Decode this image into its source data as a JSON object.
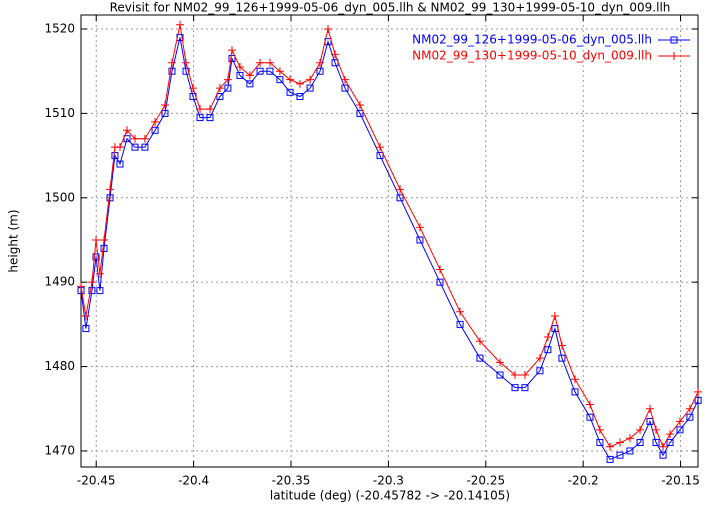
{
  "chart_data": {
    "type": "line",
    "title": "Revisit for NM02_99_126+1999-05-06_dyn_005.llh & NM02_99_130+1999-05-10_dyn_009.llh",
    "x_label": "latitude (deg) (-20.45782 -> -20.14105)",
    "y_label": "height (m)",
    "x": [
      -20.4578,
      -20.4553,
      -20.4522,
      -20.4501,
      -20.4481,
      -20.446,
      -20.4429,
      -20.4404,
      -20.4378,
      -20.4342,
      -20.4301,
      -20.425,
      -20.4198,
      -20.4147,
      -20.4111,
      -20.407,
      -20.4039,
      -20.4003,
      -20.3967,
      -20.3916,
      -20.3865,
      -20.3824,
      -20.3803,
      -20.3762,
      -20.3711,
      -20.3659,
      -20.3608,
      -20.3557,
      -20.3505,
      -20.3454,
      -20.3402,
      -20.3351,
      -20.331,
      -20.3274,
      -20.3223,
      -20.3146,
      -20.3043,
      -20.294,
      -20.2838,
      -20.2735,
      -20.2632,
      -20.253,
      -20.2427,
      -20.235,
      -20.2299,
      -20.2222,
      -20.2181,
      -20.2145,
      -20.2109,
      -20.2042,
      -20.1965,
      -20.1914,
      -20.1862,
      -20.1811,
      -20.176,
      -20.1708,
      -20.1657,
      -20.1626,
      -20.159,
      -20.1554,
      -20.1503,
      -20.1452,
      -20.141
    ],
    "series": [
      {
        "name": "NM02_99_126+1999-05-06_dyn_005.llh",
        "color": "#0000ff",
        "marker": "square",
        "values": [
          1489,
          1484.5,
          1489,
          1493,
          1489,
          1494,
          1500,
          1505,
          1504,
          1507,
          1506,
          1506,
          1508,
          1510,
          1515,
          1519,
          1515,
          1512,
          1509.5,
          1509.5,
          1512,
          1513,
          1516.5,
          1514.5,
          1513.5,
          1515,
          1515,
          1514,
          1512.5,
          1512,
          1513,
          1515,
          1518.5,
          1516,
          1513,
          1510,
          1505,
          1500,
          1495,
          1490,
          1485,
          1481,
          1479,
          1477.5,
          1477.5,
          1479.5,
          1482,
          1484.5,
          1481,
          1477,
          1474,
          1471,
          1469,
          1469.5,
          1470,
          1471,
          1473.5,
          1471,
          1469.5,
          1471,
          1472.5,
          1474,
          1476
        ]
      },
      {
        "name": "NM02_99_130+1999-05-10_dyn_009.llh",
        "color": "#ff0000",
        "marker": "plus",
        "values": [
          1489.5,
          1486,
          1490,
          1495,
          1491,
          1495,
          1501,
          1506,
          1506,
          1508,
          1507,
          1507,
          1509,
          1511,
          1516,
          1520.5,
          1516,
          1513,
          1510.5,
          1510.5,
          1513,
          1514,
          1517.5,
          1515.5,
          1514.5,
          1516,
          1516,
          1515,
          1514,
          1513.5,
          1514,
          1516,
          1520,
          1517,
          1514,
          1511,
          1506,
          1501,
          1496.5,
          1491.5,
          1486.5,
          1483,
          1480.5,
          1479,
          1479,
          1481,
          1483.5,
          1486,
          1482.5,
          1478.5,
          1475.5,
          1472.5,
          1470.5,
          1471,
          1471.5,
          1472.5,
          1475,
          1472.5,
          1470.5,
          1472,
          1473.5,
          1475,
          1477
        ]
      }
    ],
    "xlim": [
      -20.45782,
      -20.14105
    ],
    "ylim": [
      1468.1,
      1521.66
    ],
    "xticks": [
      -20.45,
      -20.4,
      -20.35,
      -20.3,
      -20.25,
      -20.2,
      -20.15
    ],
    "yticks": [
      1470,
      1480,
      1490,
      1500,
      1510,
      1520
    ],
    "grid": true,
    "legend": "top-right"
  }
}
